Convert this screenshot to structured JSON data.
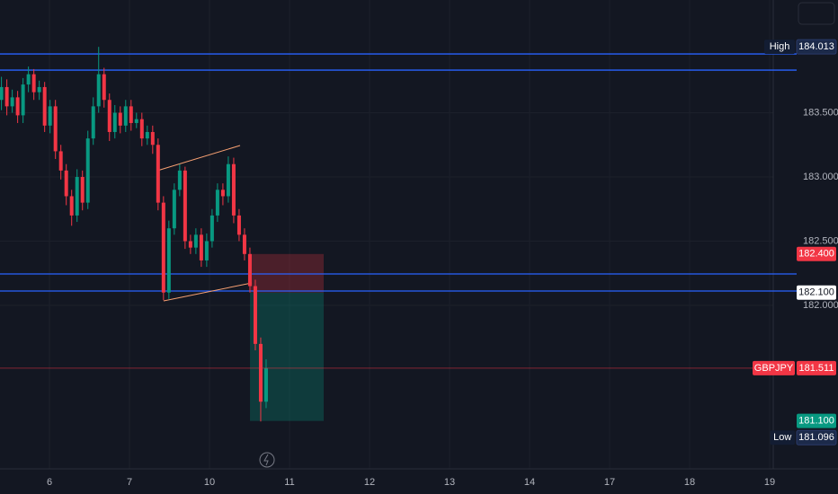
{
  "chart_data": {
    "type": "candlestick",
    "xlim": [
      -0.618,
      9.045
    ],
    "ylim": [
      180.727,
      184.378
    ],
    "xticks": [
      {
        "value": 0,
        "label": "6"
      },
      {
        "value": 1,
        "label": "7"
      },
      {
        "value": 2,
        "label": "10"
      },
      {
        "value": 3,
        "label": "11"
      },
      {
        "value": 4,
        "label": "12"
      },
      {
        "value": 5,
        "label": "13"
      },
      {
        "value": 6,
        "label": "14"
      },
      {
        "value": 7,
        "label": "17"
      },
      {
        "value": 8,
        "label": "18"
      },
      {
        "value": 9,
        "label": "19"
      }
    ],
    "yticks": [
      {
        "value": 183.5,
        "label": "183.500"
      },
      {
        "value": 183,
        "label": "183.000"
      },
      {
        "value": 182.5,
        "label": "182.500"
      },
      {
        "value": 182,
        "label": "182.000"
      }
    ],
    "grid": true,
    "up_color": "#089981",
    "down_color": "#f23645",
    "x": [
      -0.6,
      -0.5325,
      -0.465,
      -0.3975,
      -0.33,
      -0.2625,
      -0.195,
      -0.1275,
      -0.06,
      0.0075,
      0.075,
      0.1425,
      0.21,
      0.2775,
      0.345,
      0.4125,
      0.48,
      0.5475,
      0.615,
      0.6825,
      0.75,
      0.8175,
      0.885,
      0.9525,
      1.02,
      1.0875,
      1.155,
      1.2225,
      1.29,
      1.3575,
      1.425,
      1.4925,
      1.56,
      1.6275,
      1.695,
      1.7625,
      1.83,
      1.8975,
      1.965,
      2.0325,
      2.1,
      2.1675,
      2.235,
      2.3025,
      2.37,
      2.4375,
      2.505,
      2.5725,
      2.64,
      2.7075
    ],
    "open": [
      183.6,
      183.7,
      183.55,
      183.62,
      183.48,
      183.72,
      183.8,
      183.66,
      183.7,
      183.4,
      183.55,
      183.2,
      183.05,
      182.85,
      182.7,
      183.0,
      182.8,
      183.3,
      183.55,
      183.8,
      183.6,
      183.35,
      183.5,
      183.4,
      183.55,
      183.42,
      183.45,
      183.3,
      183.35,
      183.25,
      182.8,
      182.1,
      182.6,
      182.9,
      183.05,
      182.5,
      182.45,
      182.55,
      182.35,
      182.5,
      182.7,
      182.9,
      182.85,
      183.1,
      182.7,
      182.55,
      182.4,
      182.15,
      181.7,
      181.25
    ],
    "high": [
      183.78,
      183.76,
      183.68,
      183.67,
      183.77,
      183.86,
      183.84,
      183.75,
      183.74,
      183.6,
      183.6,
      183.25,
      183.1,
      182.9,
      183.06,
      183.05,
      183.36,
      183.62,
      184.013,
      183.85,
      183.65,
      183.56,
      183.55,
      183.6,
      183.6,
      183.5,
      183.5,
      183.4,
      183.4,
      183.3,
      182.85,
      182.66,
      182.95,
      183.1,
      183.08,
      182.55,
      182.6,
      182.6,
      182.56,
      182.75,
      182.95,
      182.95,
      183.16,
      183.15,
      182.75,
      182.6,
      182.45,
      182.2,
      181.75,
      181.58
    ],
    "low": [
      183.52,
      183.48,
      183.5,
      183.42,
      183.42,
      183.66,
      183.6,
      183.6,
      183.35,
      183.34,
      183.14,
      182.98,
      182.78,
      182.62,
      182.65,
      182.74,
      182.75,
      183.25,
      183.5,
      183.54,
      183.28,
      183.3,
      183.34,
      183.35,
      183.36,
      183.38,
      183.24,
      183.25,
      183.18,
      182.74,
      182.04,
      182.05,
      182.55,
      182.85,
      182.44,
      182.4,
      182.4,
      182.3,
      182.3,
      182.45,
      182.65,
      182.78,
      182.8,
      182.64,
      182.5,
      182.35,
      182.1,
      181.65,
      181.096,
      181.2
    ],
    "close": [
      183.7,
      183.55,
      183.62,
      183.48,
      183.72,
      183.8,
      183.66,
      183.7,
      183.4,
      183.55,
      183.2,
      183.05,
      182.85,
      182.7,
      183.0,
      182.8,
      183.3,
      183.55,
      183.8,
      183.6,
      183.35,
      183.5,
      183.4,
      183.55,
      183.42,
      183.45,
      183.3,
      183.35,
      183.25,
      182.8,
      182.1,
      182.6,
      182.9,
      183.05,
      182.5,
      182.45,
      182.55,
      182.35,
      182.5,
      182.7,
      182.9,
      182.85,
      183.1,
      182.7,
      182.55,
      182.4,
      182.15,
      181.7,
      181.25,
      181.511
    ],
    "hlines": [
      183.958,
      183.832,
      182.245,
      182.112
    ],
    "hline_color": "#2962ff",
    "trendlines": [
      {
        "x": [
          1.348,
          2.382
        ],
        "y": [
          183.049,
          183.245
        ]
      },
      {
        "x": [
          1.427,
          2.528
        ],
        "y": [
          182.035,
          182.175
        ]
      }
    ],
    "trendline_color": "#f7a072",
    "position": {
      "x": [
        2.506,
        3.427
      ],
      "entry": 182.1,
      "stop": 182.4,
      "target": 181.1
    },
    "price_labels": [
      {
        "value": 182.4,
        "label": "182.400",
        "color": "#f23645"
      },
      {
        "value": 182.1,
        "label": "182.100",
        "color": "#ffffff"
      },
      {
        "name": "GBPJPY",
        "value": 181.511,
        "label": "181.511",
        "color": "#f23645"
      },
      {
        "value": 181.1,
        "label": "181.100",
        "color": "#089981"
      },
      {
        "name": "High",
        "value": 184.013,
        "label": "184.013",
        "color": "#1c2a4a"
      },
      {
        "name": "Low",
        "value": 181.096,
        "label": "181.096",
        "color": "#1c2a4a"
      }
    ]
  }
}
